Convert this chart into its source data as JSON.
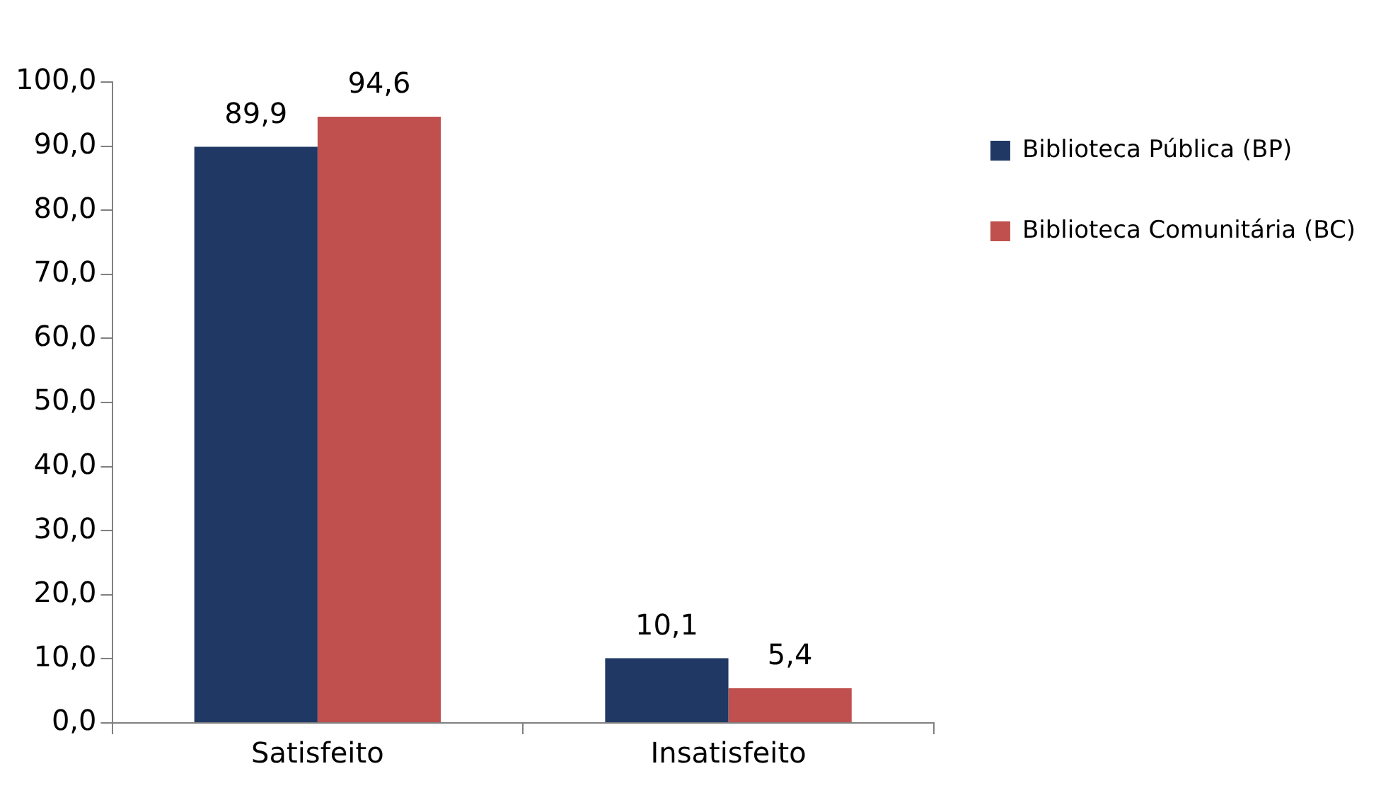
{
  "chart_data": {
    "type": "bar",
    "categories": [
      "Satisfeito",
      "Insatisfeito"
    ],
    "series": [
      {
        "name": "Biblioteca Pública (BP)",
        "color": "#1f3864",
        "values": [
          89.9,
          10.1
        ],
        "value_labels": [
          "89,9",
          "10,1"
        ]
      },
      {
        "name": "Biblioteca Comunitária (BC)",
        "color": "#c0504d",
        "values": [
          94.6,
          5.4
        ],
        "value_labels": [
          "94,6",
          "5,4"
        ]
      }
    ],
    "ylim": [
      0,
      100
    ],
    "yticks": [
      {
        "value": 0,
        "label": "0,0"
      },
      {
        "value": 10,
        "label": "10,0"
      },
      {
        "value": 20,
        "label": "20,0"
      },
      {
        "value": 30,
        "label": "30,0"
      },
      {
        "value": 40,
        "label": "40,0"
      },
      {
        "value": 50,
        "label": "50,0"
      },
      {
        "value": 60,
        "label": "60,0"
      },
      {
        "value": 70,
        "label": "70,0"
      },
      {
        "value": 80,
        "label": "80,0"
      },
      {
        "value": 90,
        "label": "90,0"
      },
      {
        "value": 100,
        "label": "100,0"
      }
    ],
    "grid": false,
    "legend": "top right"
  }
}
